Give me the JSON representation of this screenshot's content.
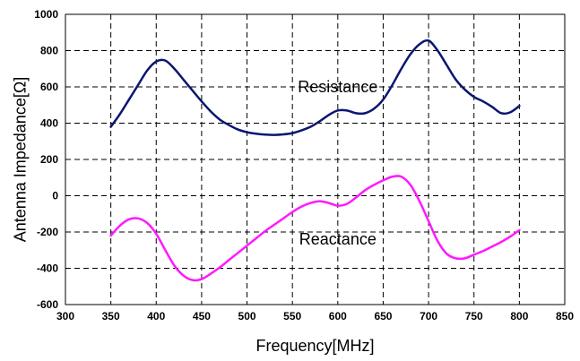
{
  "chart_data": {
    "type": "line",
    "title": "",
    "xlabel": "Frequency[MHz]",
    "ylabel": "Antenna Impedance[Ω]",
    "xlim": [
      300,
      850
    ],
    "ylim": [
      -600,
      1000
    ],
    "x_ticks": [
      300,
      350,
      400,
      450,
      500,
      550,
      600,
      650,
      700,
      750,
      800,
      850
    ],
    "y_ticks": [
      -600,
      -400,
      -200,
      0,
      200,
      400,
      600,
      800,
      1000
    ],
    "grid": true,
    "legend": "none",
    "annotations": [
      {
        "text": "Resistance",
        "x": 600,
        "y": 600
      },
      {
        "text": "Reactance",
        "x": 600,
        "y": -240
      }
    ],
    "series": [
      {
        "name": "Resistance",
        "color": "#0a1670",
        "x": [
          350,
          360,
          370,
          380,
          390,
          400,
          410,
          420,
          430,
          440,
          450,
          460,
          470,
          480,
          490,
          500,
          510,
          520,
          530,
          540,
          550,
          560,
          570,
          580,
          590,
          600,
          610,
          620,
          630,
          640,
          650,
          660,
          670,
          680,
          690,
          700,
          710,
          720,
          730,
          740,
          750,
          760,
          770,
          780,
          790,
          800
        ],
        "values": [
          380,
          450,
          530,
          610,
          690,
          740,
          745,
          700,
          640,
          580,
          520,
          465,
          420,
          390,
          365,
          350,
          342,
          337,
          335,
          338,
          345,
          360,
          380,
          410,
          445,
          470,
          470,
          455,
          455,
          480,
          530,
          610,
          700,
          780,
          835,
          855,
          800,
          720,
          640,
          585,
          545,
          520,
          490,
          455,
          460,
          495
        ]
      },
      {
        "name": "Reactance",
        "color": "#ff19ff",
        "x": [
          350,
          360,
          370,
          380,
          390,
          400,
          410,
          420,
          430,
          440,
          450,
          460,
          470,
          480,
          490,
          500,
          510,
          520,
          530,
          540,
          550,
          560,
          570,
          580,
          590,
          600,
          610,
          620,
          630,
          640,
          650,
          660,
          670,
          680,
          690,
          700,
          710,
          720,
          730,
          740,
          750,
          760,
          770,
          780,
          790,
          800
        ],
        "values": [
          -220,
          -165,
          -130,
          -125,
          -150,
          -210,
          -300,
          -385,
          -440,
          -465,
          -460,
          -430,
          -395,
          -355,
          -315,
          -275,
          -235,
          -195,
          -160,
          -125,
          -90,
          -60,
          -40,
          -30,
          -40,
          -55,
          -45,
          -10,
          30,
          60,
          85,
          105,
          105,
          60,
          -30,
          -140,
          -250,
          -320,
          -345,
          -345,
          -325,
          -305,
          -280,
          -255,
          -225,
          -190
        ]
      }
    ]
  }
}
